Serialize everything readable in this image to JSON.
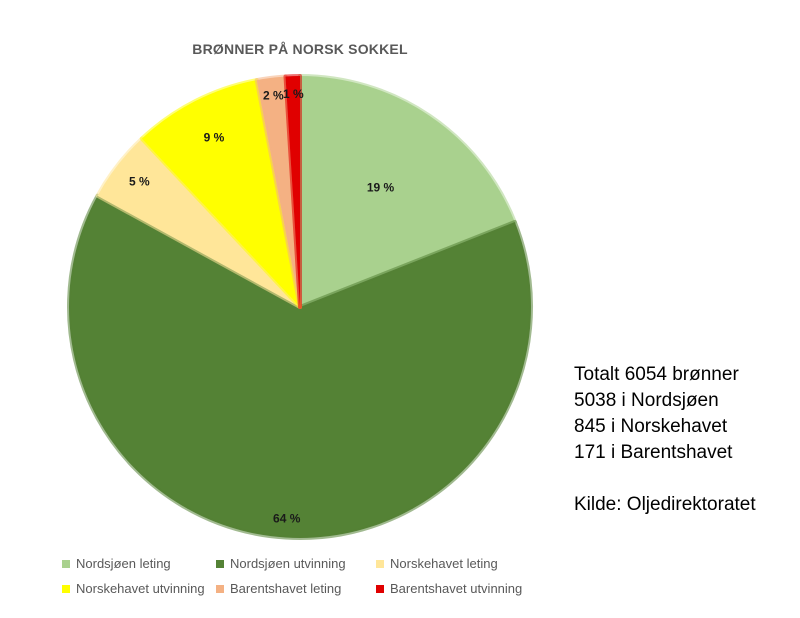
{
  "chart_data": {
    "type": "pie",
    "title": "BRØNNER PÅ NORSK SOKKEL",
    "slices": [
      {
        "name": "Nordsjøen leting",
        "value": 19,
        "label": "19 %",
        "color": "#a9d18e"
      },
      {
        "name": "Nordsjøen utvinning",
        "value": 64,
        "label": "64 %",
        "color": "#548235"
      },
      {
        "name": "Norskehavet leting",
        "value": 5,
        "label": "5 %",
        "color": "#ffe699"
      },
      {
        "name": "Norskehavet utvinning",
        "value": 9,
        "label": "9 %",
        "color": "#ffff00"
      },
      {
        "name": "Barentshavet leting",
        "value": 2,
        "label": "2 %",
        "color": "#f4b183"
      },
      {
        "name": "Barentshavet utvinning",
        "value": 1,
        "label": "1 %",
        "color": "#e00000"
      }
    ],
    "legend_position": "bottom"
  },
  "info": {
    "lines": [
      "Totalt 6054 brønner",
      "5038 i Nordsjøen",
      "845 i Norskehavet",
      "171 i Barentshavet"
    ],
    "source": "Kilde: Oljedirektoratet"
  }
}
